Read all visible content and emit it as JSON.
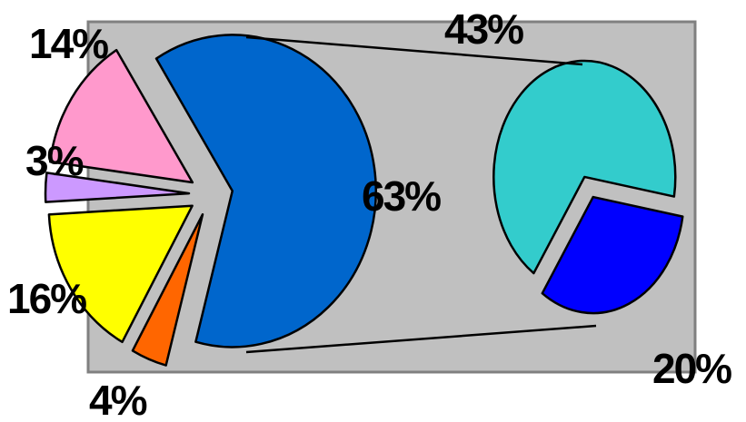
{
  "chart_data": {
    "type": "pie",
    "subtype": "pie-of-pie",
    "main_pie": {
      "slices": [
        {
          "id": "blue",
          "value": 63,
          "label": "63%",
          "color": "#0066cc"
        },
        {
          "id": "orange",
          "value": 4,
          "label": "4%",
          "color": "#ff6600"
        },
        {
          "id": "yellow",
          "value": 16,
          "label": "16%",
          "color": "#ffff00"
        },
        {
          "id": "lavender",
          "value": 3,
          "label": "3%",
          "color": "#cc99ff"
        },
        {
          "id": "pink",
          "value": 14,
          "label": "14%",
          "color": "#ff99cc"
        }
      ]
    },
    "secondary_pie": {
      "source_slice": "63%",
      "slices": [
        {
          "id": "teal",
          "value": 43,
          "label": "43%",
          "color": "#33cccc"
        },
        {
          "id": "darkblue",
          "value": 20,
          "label": "20%",
          "color": "#0000ff"
        }
      ]
    },
    "plot_background": "#c0c0c0",
    "legend": "none"
  }
}
